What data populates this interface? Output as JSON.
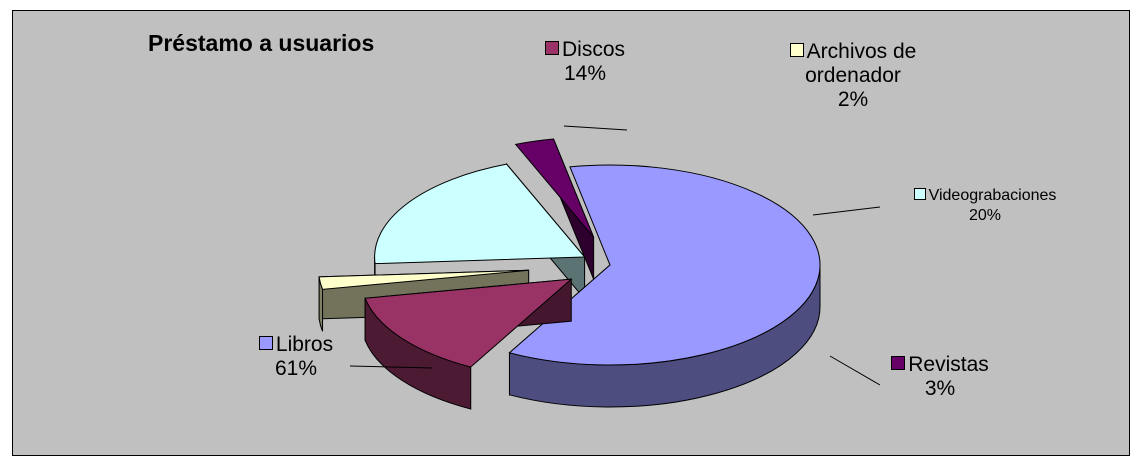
{
  "chart_data": {
    "type": "pie",
    "style": "3d-exploded",
    "title": "Préstamo a usuarios",
    "categories": [
      "Libros",
      "Discos",
      "Archivos de ordenador",
      "Videograbaciones",
      "Revistas"
    ],
    "values": [
      61,
      14,
      2,
      20,
      3
    ],
    "value_labels": [
      "61%",
      "14%",
      "2%",
      "20%",
      "3%"
    ],
    "label_lines": [
      "Libros",
      "Discos",
      "Archivos de\nordenador",
      "Videograbaciones",
      "Revistas"
    ],
    "colors": [
      "#9999ff",
      "#993366",
      "#ffffcc",
      "#ccffff",
      "#660066"
    ],
    "legend": "none",
    "labels_position": "outside-with-leaders"
  }
}
